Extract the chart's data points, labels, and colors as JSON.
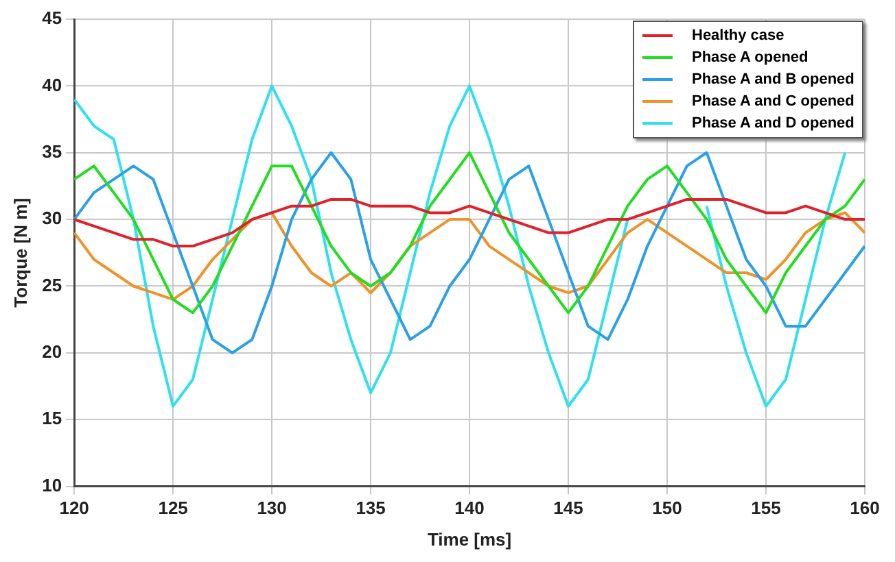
{
  "chart_data": {
    "type": "line",
    "xlabel": "Time [ms]",
    "ylabel": "Torque [N m]",
    "x": [
      120,
      121,
      122,
      123,
      124,
      125,
      126,
      127,
      128,
      129,
      130,
      131,
      132,
      133,
      134,
      135,
      136,
      137,
      138,
      139,
      140,
      141,
      142,
      143,
      144,
      145,
      146,
      147,
      148,
      149,
      150,
      151,
      152,
      153,
      154,
      155,
      156,
      157,
      158,
      159,
      160
    ],
    "series": [
      {
        "name": "Healthy case",
        "color": "#e0202a",
        "values": [
          30,
          29.5,
          29,
          28.5,
          28.5,
          28,
          28,
          28.5,
          29,
          30,
          30.5,
          31,
          31,
          31.5,
          31.5,
          31,
          31,
          31,
          30.5,
          30.5,
          31,
          30.5,
          30,
          29.5,
          29,
          29,
          29.5,
          30,
          30,
          30.5,
          31,
          31.5,
          31.5,
          31.5,
          31,
          30.5,
          30.5,
          31,
          30.5,
          30,
          30
        ]
      },
      {
        "name": "Phase A opened",
        "color": "#22dd22",
        "values": [
          33,
          34,
          32,
          30,
          27,
          24,
          23,
          25,
          28,
          31,
          34,
          34,
          31,
          28,
          26,
          25,
          26,
          28,
          31,
          33,
          35,
          32,
          29,
          27,
          25,
          23,
          25,
          28,
          31,
          33,
          34,
          32,
          30,
          27,
          25,
          23,
          26,
          28,
          30,
          31,
          33
        ]
      },
      {
        "name": "Phase A and B opened",
        "color": "#2aa0e8",
        "values": [
          30,
          32,
          33,
          34,
          33,
          29,
          25,
          21,
          20,
          21,
          25,
          30,
          33,
          35,
          33,
          27,
          24,
          21,
          22,
          25,
          27,
          30,
          33,
          34,
          30,
          26,
          22,
          21,
          24,
          28,
          31,
          34,
          35,
          31,
          27,
          25,
          22,
          22,
          24,
          26,
          28
        ]
      },
      {
        "name": "Phase A and C opened",
        "color": "#f0922a",
        "values": [
          29,
          27,
          26,
          25,
          24.5,
          24,
          25,
          27,
          28.5,
          30,
          30.5,
          28,
          26,
          25,
          26,
          24.5,
          26,
          28,
          29,
          30,
          30,
          28,
          27,
          26,
          25,
          24.5,
          25,
          27,
          29,
          30,
          29,
          28,
          27,
          26,
          26,
          25.5,
          27,
          29,
          30,
          30.5,
          29
        ]
      },
      {
        "name": "Phase A and D opened",
        "color": "#30e0f0",
        "values": [
          39,
          37,
          36,
          30,
          22,
          16,
          18,
          24,
          30,
          36,
          40,
          37,
          33,
          26,
          21,
          17,
          20,
          26,
          32,
          37,
          40,
          36,
          31,
          25,
          20,
          16,
          18,
          24,
          30,
          null,
          null,
          null,
          31,
          25,
          20,
          16,
          18,
          24,
          30,
          35,
          null
        ]
      }
    ],
    "xlim": [
      120,
      160
    ],
    "xticks": [
      120,
      125,
      130,
      135,
      140,
      145,
      150,
      155,
      160
    ],
    "ylim": [
      10,
      45
    ],
    "yticks": [
      10,
      15,
      20,
      25,
      30,
      35,
      40,
      45
    ],
    "grid": true,
    "legend": "top right",
    "marker": "none",
    "line_style": "solid"
  }
}
